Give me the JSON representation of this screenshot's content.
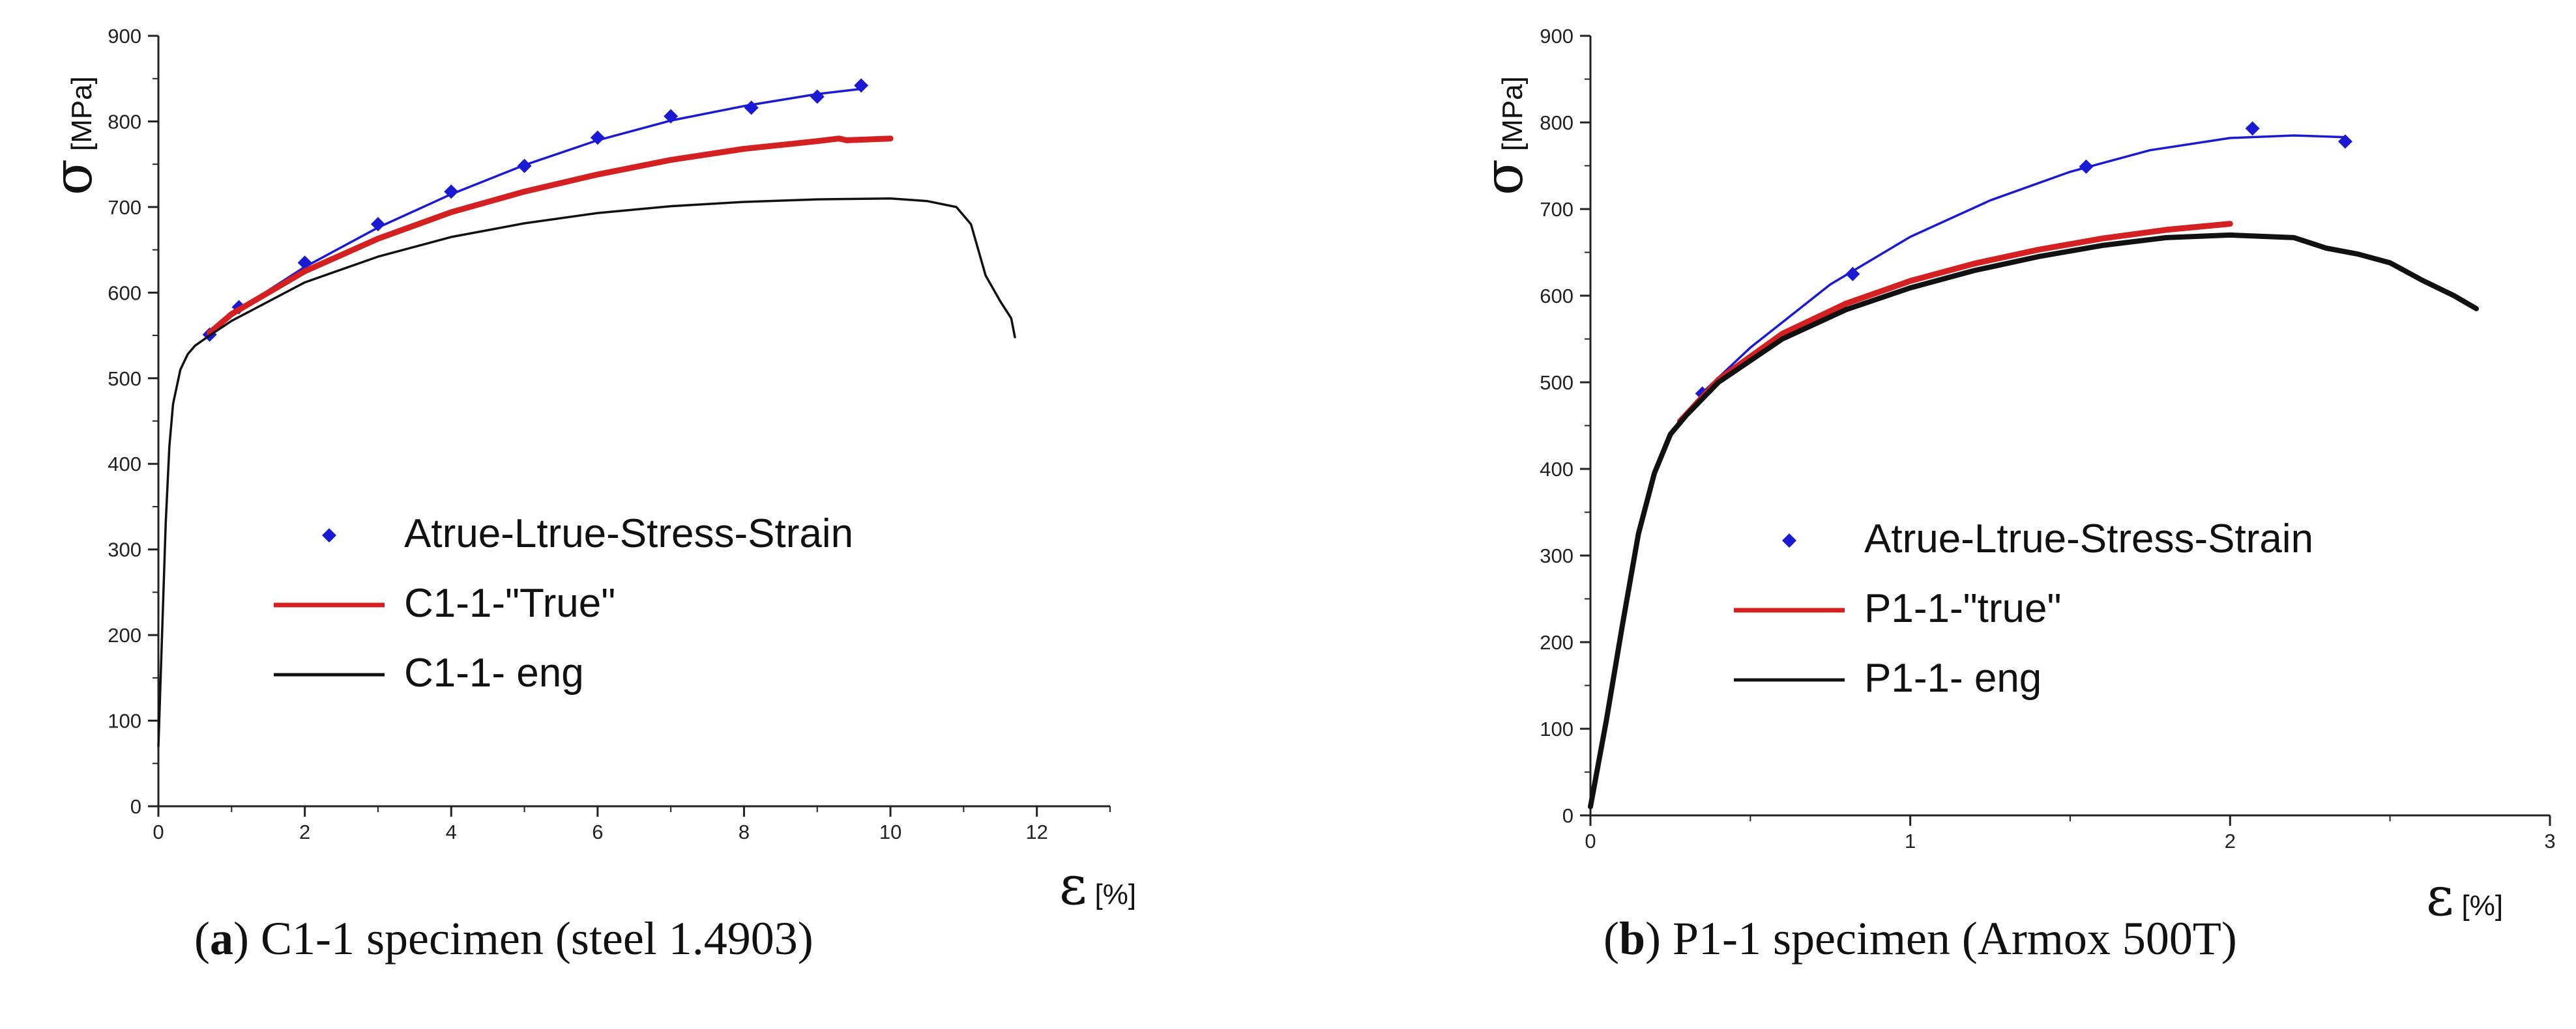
{
  "chart_data": [
    {
      "id": "a",
      "type": "line",
      "caption_letter": "a",
      "caption_text": "C1-1 specimen (steel 1.4903)",
      "ylabel_symbol": "σ",
      "ylabel_unit": "[MPa]",
      "xlabel_symbol": "ε",
      "xlabel_unit": "[%]",
      "xlim": [
        0,
        13
      ],
      "ylim": [
        0,
        900
      ],
      "xticks": [
        0,
        2,
        4,
        6,
        8,
        10,
        12
      ],
      "yticks": [
        0,
        100,
        200,
        300,
        400,
        500,
        600,
        700,
        800,
        900
      ],
      "legend_position": "center",
      "series": [
        {
          "name": "Atrue-Ltrue-Stress-Strain",
          "kind": "markers-with-fit",
          "color": "#1a1ad4",
          "x": [
            0.7,
            1.1,
            2.0,
            3.0,
            4.0,
            5.0,
            6.0,
            7.0,
            8.1,
            9.0,
            9.6
          ],
          "y": [
            551,
            583,
            635,
            680,
            718,
            748,
            781,
            806,
            816,
            829,
            842
          ],
          "fit_x": [
            0.7,
            1.0,
            2.0,
            3.0,
            4.0,
            5.0,
            6.0,
            7.0,
            8.0,
            9.0,
            9.6
          ],
          "fit_y": [
            555,
            575,
            630,
            676,
            715,
            749,
            778,
            801,
            818,
            832,
            838
          ]
        },
        {
          "name": "C1-1-\"True\"",
          "kind": "line",
          "color": "#d42020",
          "x": [
            0.7,
            1.0,
            2.0,
            3.0,
            4.0,
            5.0,
            6.0,
            7.0,
            8.0,
            9.0,
            9.3,
            9.4,
            10.0
          ],
          "y": [
            553,
            575,
            625,
            663,
            694,
            718,
            738,
            755,
            768,
            777,
            780,
            778,
            780
          ]
        },
        {
          "name": "C1-1- eng",
          "kind": "line",
          "color": "#111111",
          "x": [
            0,
            0.05,
            0.1,
            0.15,
            0.2,
            0.3,
            0.4,
            0.5,
            0.7,
            1.0,
            2.0,
            3.0,
            4.0,
            5.0,
            6.0,
            7.0,
            8.0,
            9.0,
            10.0,
            10.5,
            10.9,
            11.1,
            11.3,
            11.5,
            11.65,
            11.7
          ],
          "y": [
            70,
            200,
            330,
            420,
            470,
            510,
            528,
            538,
            550,
            567,
            612,
            642,
            665,
            681,
            693,
            701,
            706,
            709,
            710,
            707,
            700,
            680,
            620,
            590,
            570,
            548
          ]
        }
      ]
    },
    {
      "id": "b",
      "type": "line",
      "caption_letter": "b",
      "caption_text": "P1-1 specimen (Armox 500T)",
      "ylabel_symbol": "σ",
      "ylabel_unit": "[MPa]",
      "xlabel_symbol": "ε",
      "xlabel_unit": "[%]",
      "xlim": [
        0,
        3
      ],
      "ylim": [
        0,
        900
      ],
      "xticks": [
        0,
        1,
        2,
        3
      ],
      "yticks": [
        0,
        100,
        200,
        300,
        400,
        500,
        600,
        700,
        800,
        900
      ],
      "legend_position": "center-right",
      "series": [
        {
          "name": "Atrue-Ltrue-Stress-Strain",
          "kind": "markers-with-fit",
          "color": "#1a1ad4",
          "x": [
            0.35,
            0.82,
            1.55,
            2.07,
            2.36
          ],
          "y": [
            487,
            625,
            749,
            793,
            778
          ],
          "fit_x": [
            0.35,
            0.5,
            0.75,
            1.0,
            1.25,
            1.5,
            1.75,
            2.0,
            2.2,
            2.36
          ],
          "fit_y": [
            488,
            540,
            613,
            668,
            710,
            743,
            768,
            782,
            785,
            783
          ]
        },
        {
          "name": "P1-1-\"true\"",
          "kind": "line",
          "color": "#d42020",
          "x": [
            0.28,
            0.4,
            0.6,
            0.8,
            1.0,
            1.2,
            1.4,
            1.6,
            1.8,
            2.0
          ],
          "y": [
            455,
            503,
            556,
            591,
            617,
            637,
            653,
            666,
            676,
            683
          ]
        },
        {
          "name": "P1-1- eng",
          "kind": "line",
          "color": "#111111",
          "x": [
            0,
            0.05,
            0.1,
            0.15,
            0.2,
            0.25,
            0.3,
            0.4,
            0.6,
            0.8,
            1.0,
            1.2,
            1.4,
            1.6,
            1.8,
            2.0,
            2.2,
            2.3,
            2.4,
            2.5,
            2.6,
            2.7,
            2.77
          ],
          "y": [
            10,
            110,
            220,
            325,
            395,
            440,
            462,
            500,
            550,
            584,
            609,
            629,
            645,
            658,
            667,
            670,
            667,
            655,
            648,
            638,
            618,
            600,
            585
          ]
        }
      ]
    }
  ]
}
